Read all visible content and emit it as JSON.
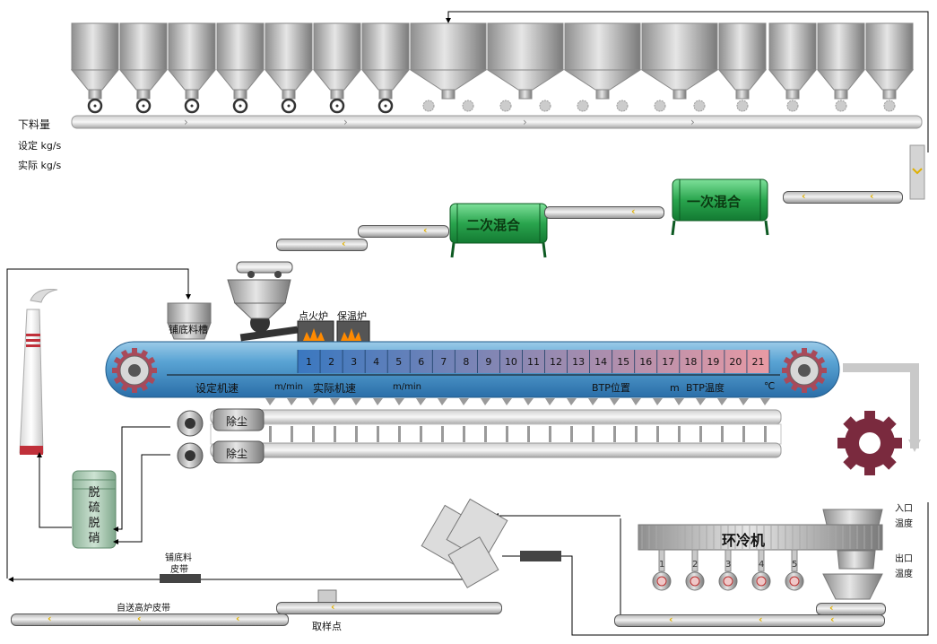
{
  "feed_panel": {
    "feed_amount_label": "下料量",
    "set_label": "设定 kg/s",
    "actual_label": "实际 kg/s"
  },
  "mixers": {
    "secondary_label": "二次混合",
    "primary_label": "一次混合"
  },
  "hearth_bin_label": "铺底料槽",
  "ignition_label": "点火炉",
  "holding_label": "保温炉",
  "sinter_machine": {
    "cells": [
      "1",
      "2",
      "3",
      "4",
      "5",
      "6",
      "7",
      "8",
      "9",
      "10",
      "11",
      "12",
      "13",
      "14",
      "15",
      "16",
      "17",
      "18",
      "19",
      "20",
      "21"
    ],
    "set_speed_label": "设定机速",
    "set_speed_unit": "m/min",
    "actual_speed_label": "实际机速",
    "actual_speed_unit": "m/min",
    "btp_position_label": "BTP位置",
    "btp_position_unit": "m",
    "btp_temp_label": "BTP温度",
    "btp_temp_unit": "℃"
  },
  "dust_removal": [
    "除尘",
    "除尘"
  ],
  "desulfurization_label": [
    "脱",
    "硫",
    "脱",
    "硝"
  ],
  "cooler": {
    "label": "环冷机",
    "inlet_temp_label": [
      "入口",
      "温度"
    ],
    "outlet_temp_label": [
      "出口",
      "温度"
    ],
    "fans": [
      "1",
      "2",
      "3",
      "4",
      "5"
    ]
  },
  "hearth_belt_label": [
    "铺底料",
    "皮带"
  ],
  "blast_furnace_belt_label": "自送高炉皮带",
  "sampling_point_label": "取样点",
  "colors": {
    "machine_blue": "#4a90c8",
    "cell_blue": "#3a78c0",
    "btp_pink": "#e8a0a8",
    "mixer_green": "#2a9a46",
    "gear_maroon": "#7a2a3e",
    "chevron": "#e0b000"
  }
}
